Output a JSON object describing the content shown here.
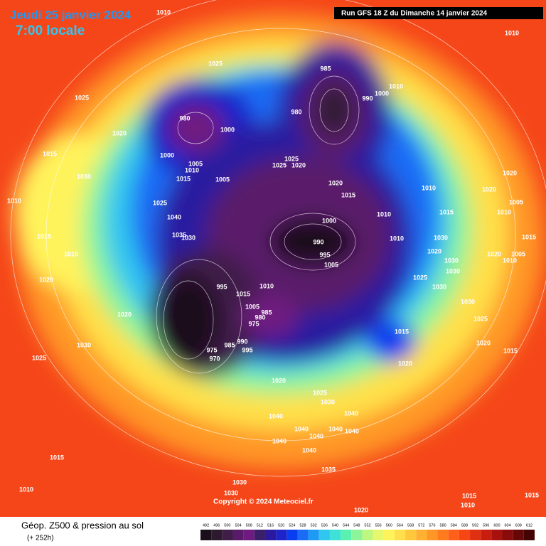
{
  "header": {
    "date": "Jeudi 25 janvier 2024",
    "time": "7:00 locale",
    "run": "Run GFS 18 Z du Dimanche 14 janvier 2024"
  },
  "copyright": "Copyright © 2024 Meteociel.fr",
  "legend": {
    "title": "Géop. Z500 & pression au sol",
    "lead": "(+ 252h)",
    "values": [
      492,
      496,
      500,
      504,
      508,
      512,
      516,
      520,
      524,
      528,
      532,
      536,
      540,
      544,
      548,
      552,
      556,
      560,
      564,
      568,
      572,
      576,
      580,
      584,
      588,
      592,
      596,
      600,
      604,
      608,
      612
    ],
    "colors": [
      "#1a0f1a",
      "#2e1a2e",
      "#3f1f48",
      "#5a1a6a",
      "#6f1a80",
      "#3a1f6b",
      "#2b1aa0",
      "#1f24c8",
      "#0a3cf0",
      "#1a6cf5",
      "#1e9af5",
      "#30c6f0",
      "#3ee0d8",
      "#59f0b0",
      "#8cf59a",
      "#bdf780",
      "#e6f76c",
      "#fff35c",
      "#ffe04a",
      "#ffc83c",
      "#ffb030",
      "#ff9626",
      "#ff7b1e",
      "#ff5f18",
      "#f54614",
      "#e03012",
      "#c81e10",
      "#a8120e",
      "#880c0c",
      "#660808",
      "#440404"
    ]
  },
  "isobars": [
    "1010",
    "1025",
    "1025",
    "1020",
    "1015",
    "1030",
    "1010",
    "1015",
    "1010",
    "1020",
    "1020",
    "1030",
    "1025",
    "1015",
    "1010",
    "1030",
    "980",
    "1000",
    "1000",
    "1005",
    "1010",
    "1015",
    "1005",
    "1025",
    "1040",
    "1035",
    "1030",
    "985",
    "980",
    "1000",
    "1010",
    "990",
    "1025",
    "1025",
    "1020",
    "1020",
    "1015",
    "1010",
    "1000",
    "990",
    "995",
    "1005",
    "1010",
    "995",
    "1015",
    "1010",
    "1005",
    "985",
    "980",
    "975",
    "990",
    "995",
    "985",
    "970",
    "975",
    "1020",
    "1025",
    "1030",
    "1040",
    "1040",
    "1040",
    "1040",
    "1040",
    "1040",
    "1040",
    "1040",
    "1035",
    "1020",
    "1010",
    "1010",
    "1020",
    "1020",
    "1015",
    "1010",
    "1005",
    "1030",
    "1020",
    "1015",
    "1020",
    "1005",
    "1010",
    "1030",
    "1030",
    "1025",
    "1030",
    "1030",
    "1025",
    "1015",
    "1020",
    "1015",
    "1020",
    "1015",
    "1010",
    "1015",
    "1030"
  ]
}
